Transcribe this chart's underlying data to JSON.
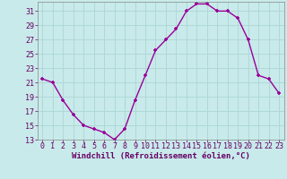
{
  "x": [
    0,
    1,
    2,
    3,
    4,
    5,
    6,
    7,
    8,
    9,
    10,
    11,
    12,
    13,
    14,
    15,
    16,
    17,
    18,
    19,
    20,
    21,
    22,
    23
  ],
  "y": [
    21.5,
    21.0,
    18.5,
    16.5,
    15.0,
    14.5,
    14.0,
    13.0,
    14.5,
    18.5,
    22.0,
    25.5,
    27.0,
    28.5,
    31.0,
    32.0,
    32.0,
    31.0,
    31.0,
    30.0,
    27.0,
    22.0,
    21.5,
    19.5
  ],
  "line_color": "#990099",
  "marker": "+",
  "bg_color": "#c8eaea",
  "grid_color": "#b0d8d8",
  "xlabel": "Windchill (Refroidissement éolien,°C)",
  "ylim": [
    13,
    32
  ],
  "xlim": [
    -0.5,
    23.5
  ],
  "yticks": [
    13,
    15,
    17,
    19,
    21,
    23,
    25,
    27,
    29,
    31
  ],
  "xticks": [
    0,
    1,
    2,
    3,
    4,
    5,
    6,
    7,
    8,
    9,
    10,
    11,
    12,
    13,
    14,
    15,
    16,
    17,
    18,
    19,
    20,
    21,
    22,
    23
  ],
  "xlabel_color": "#660066",
  "tick_color": "#660066",
  "spine_color": "#888888",
  "label_fontsize": 6.5,
  "tick_fontsize": 6.0,
  "line_width": 1.0,
  "marker_size": 3.5
}
